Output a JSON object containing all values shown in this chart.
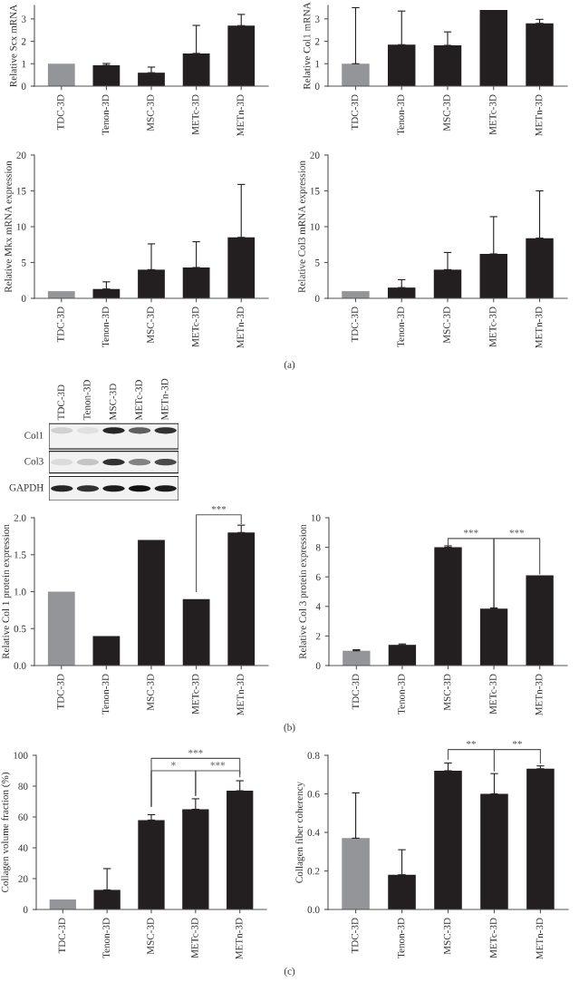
{
  "chart_data": [
    {
      "type": "bar",
      "ylabel": "Relative Scx mRNA",
      "categories": [
        "TDC-3D",
        "Tenon-3D",
        "MSC-3D",
        "METc-3D",
        "METn-3D"
      ],
      "values": [
        1,
        0.93,
        0.6,
        1.46,
        2.7
      ],
      "errors": [
        null,
        [
          0.93,
          1.01
        ],
        [
          0.6,
          0.85
        ],
        [
          1.46,
          2.71
        ],
        [
          2.7,
          3.2
        ]
      ],
      "colors": [
        "#939598",
        "#231f20",
        "#231f20",
        "#231f20",
        "#231f20"
      ],
      "ylim": [
        0,
        3.6
      ],
      "yticks": [
        0,
        1,
        2,
        3
      ],
      "grid": false
    },
    {
      "type": "bar",
      "ylabel": "Relative Col1 mRNA",
      "categories": [
        "TDC-3D",
        "Tenon-3D",
        "MSC-3D",
        "METc-3D",
        "METn-3D"
      ],
      "values": [
        1,
        1.85,
        1.82,
        3.4,
        2.8
      ],
      "errors": [
        [
          1,
          3.5
        ],
        [
          1.85,
          3.35
        ],
        [
          1.82,
          2.42
        ],
        null,
        [
          2.8,
          2.98
        ]
      ],
      "colors": [
        "#939598",
        "#231f20",
        "#231f20",
        "#231f20",
        "#231f20"
      ],
      "ylim": [
        0,
        3.6
      ],
      "yticks": [
        0,
        1,
        2,
        3
      ],
      "grid": false
    },
    {
      "type": "bar",
      "ylabel": "Relative Mkx mRNA expression",
      "categories": [
        "TDC-3D",
        "Tenon-3D",
        "MSC-3D",
        "METc-3D",
        "METn-3D"
      ],
      "values": [
        1,
        1.3,
        4,
        4.3,
        8.5
      ],
      "errors": [
        null,
        [
          1.3,
          2.3
        ],
        [
          4,
          7.6
        ],
        [
          4.3,
          7.9
        ],
        [
          8.5,
          15.9
        ]
      ],
      "colors": [
        "#939598",
        "#231f20",
        "#231f20",
        "#231f20",
        "#231f20"
      ],
      "ylim": [
        0,
        20
      ],
      "yticks": [
        0,
        5,
        10,
        15,
        20
      ],
      "grid": false
    },
    {
      "type": "bar",
      "ylabel": "Relative Col3 mRNA expression",
      "categories": [
        "TDC-3D",
        "Tenon-3D",
        "MSC-3D",
        "METc-3D",
        "METn-3D"
      ],
      "values": [
        1,
        1.5,
        4,
        6.2,
        8.4
      ],
      "errors": [
        null,
        [
          1.5,
          2.6
        ],
        [
          4,
          6.4
        ],
        [
          6.2,
          11.4
        ],
        [
          8.4,
          15
        ]
      ],
      "colors": [
        "#939598",
        "#231f20",
        "#231f20",
        "#231f20",
        "#231f20"
      ],
      "ylim": [
        0,
        20
      ],
      "yticks": [
        0,
        5,
        10,
        15,
        20
      ],
      "grid": false,
      "annotations": [
        "(a)"
      ]
    },
    {
      "type": "other",
      "categories": [
        "TDC-3D",
        "Tenon-3D",
        "MSC-3D",
        "METc-3D",
        "METn-3D"
      ],
      "annotations": [
        "Col1",
        "Col3",
        "GAPDH"
      ]
    },
    {
      "type": "bar",
      "ylabel": "Relative Col 1 protein expression",
      "categories": [
        "TDC-3D",
        "Tenon-3D",
        "MSC-3D",
        "METc-3D",
        "METn-3D"
      ],
      "values": [
        1.0,
        0.4,
        1.7,
        0.9,
        1.8
      ],
      "errors": [
        null,
        null,
        null,
        null,
        [
          1.8,
          1.9
        ]
      ],
      "colors": [
        "#939598",
        "#231f20",
        "#231f20",
        "#231f20",
        "#231f20"
      ],
      "ylim": [
        0,
        2
      ],
      "yticks": [
        {
          "value": 0,
          "label": "0.0"
        },
        {
          "value": 0.5,
          "label": "0.5"
        },
        {
          "value": 1,
          "label": "1.0"
        },
        {
          "value": 1.5,
          "label": "1.5"
        },
        {
          "value": 2,
          "label": "2.0"
        }
      ],
      "grid": false,
      "annotations": [
        "***"
      ]
    },
    {
      "type": "bar",
      "ylabel": "Relative Col 3 protein expression",
      "categories": [
        "TDC-3D",
        "Tenon-3D",
        "MSC-3D",
        "METc-3D",
        "METn-3D"
      ],
      "values": [
        1.0,
        1.4,
        8.0,
        3.85,
        6.1
      ],
      "errors": [
        [
          1.0,
          1.07
        ],
        [
          1.4,
          1.46
        ],
        [
          8.0,
          8.1
        ],
        [
          3.85,
          3.9
        ],
        null
      ],
      "colors": [
        "#939598",
        "#231f20",
        "#231f20",
        "#231f20",
        "#231f20"
      ],
      "ylim": [
        0,
        10
      ],
      "yticks": [
        0,
        2,
        4,
        6,
        8,
        10
      ],
      "grid": false,
      "annotations": [
        "***",
        "***",
        "(b)"
      ]
    },
    {
      "type": "bar",
      "ylabel": "Collagen volume fraction (%)",
      "categories": [
        "TDC-3D",
        "Tenon-3D",
        "MSC-3D",
        "METc-3D",
        "METn-3D"
      ],
      "values": [
        6.5,
        12.7,
        58,
        65,
        77
      ],
      "errors": [
        null,
        [
          12.7,
          26.5
        ],
        [
          58,
          61.5
        ],
        [
          65,
          71.8
        ],
        [
          77,
          83.5
        ]
      ],
      "colors": [
        "#939598",
        "#231f20",
        "#231f20",
        "#231f20",
        "#231f20"
      ],
      "ylim": [
        0,
        100
      ],
      "yticks": [
        0,
        20,
        40,
        60,
        80,
        100
      ],
      "grid": false,
      "annotations": [
        "***",
        "*",
        "***"
      ]
    },
    {
      "type": "bar",
      "ylabel": "Collagen fiber coherency",
      "categories": [
        "TDC-3D",
        "Tenon-3D",
        "MSC-3D",
        "METc-3D",
        "METn-3D"
      ],
      "values": [
        0.37,
        0.18,
        0.72,
        0.6,
        0.73
      ],
      "errors": [
        [
          0.37,
          0.605
        ],
        [
          0.18,
          0.31
        ],
        [
          0.72,
          0.76
        ],
        [
          0.6,
          0.705
        ],
        [
          0.73,
          0.745
        ]
      ],
      "colors": [
        "#939598",
        "#231f20",
        "#231f20",
        "#231f20",
        "#231f20"
      ],
      "ylim": [
        0,
        0.8
      ],
      "yticks": [
        {
          "value": 0,
          "label": "0.0"
        },
        {
          "value": 0.2,
          "label": "0.2"
        },
        {
          "value": 0.4,
          "label": "0.4"
        },
        {
          "value": 0.6,
          "label": "0.6"
        },
        {
          "value": 0.8,
          "label": "0.8"
        }
      ],
      "grid": false,
      "annotations": [
        "**",
        "**",
        "(c)"
      ]
    }
  ]
}
